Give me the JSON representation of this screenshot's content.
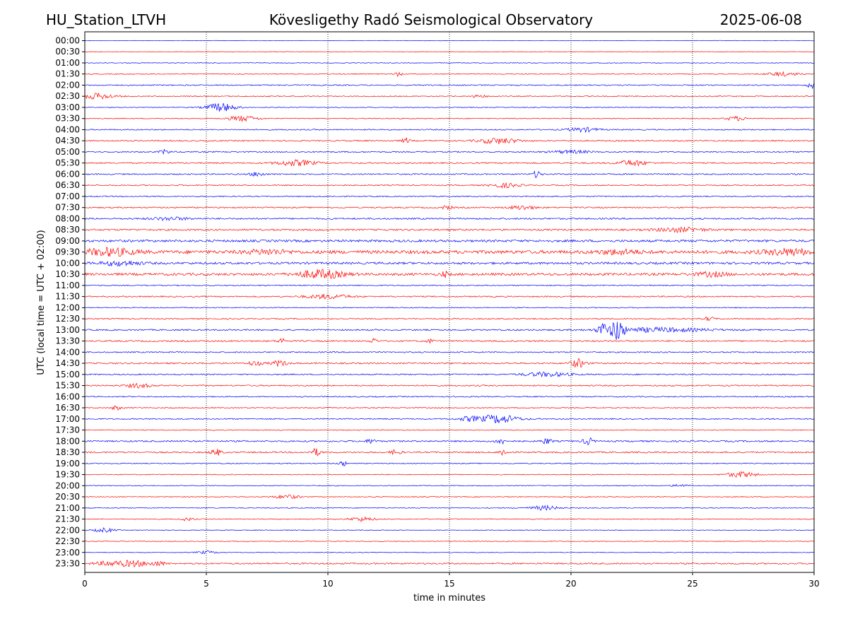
{
  "header": {
    "station": "HU_Station_LTVH",
    "observatory": "Kövesligethy Radó Seismological Observatory",
    "date": "2025-06-08"
  },
  "chart_data": {
    "type": "line",
    "title": "Kövesligethy Radó Seismological Observatory",
    "xlabel": "time in minutes",
    "ylabel": "UTC (local time = UTC + 02:00)",
    "xlim": [
      0,
      30
    ],
    "xticks": [
      "0",
      "5",
      "10",
      "15",
      "20",
      "25",
      "30"
    ],
    "grid": "vertical dotted at each x tick",
    "colors": [
      "#0000ff",
      "#ff0000"
    ],
    "rows": [
      "00:00",
      "00:30",
      "01:00",
      "01:30",
      "02:00",
      "02:30",
      "03:00",
      "03:30",
      "04:00",
      "04:30",
      "05:00",
      "05:30",
      "06:00",
      "06:30",
      "07:00",
      "07:30",
      "08:00",
      "08:30",
      "09:00",
      "09:30",
      "10:00",
      "10:30",
      "11:00",
      "11:30",
      "12:00",
      "12:30",
      "13:00",
      "13:30",
      "14:00",
      "14:30",
      "15:00",
      "15:30",
      "16:00",
      "16:30",
      "17:00",
      "17:30",
      "18:00",
      "18:30",
      "19:00",
      "19:30",
      "20:00",
      "20:30",
      "21:00",
      "21:30",
      "22:00",
      "22:30",
      "23:00",
      "23:30"
    ],
    "noise": [
      0.3,
      0.3,
      0.5,
      0.6,
      0.8,
      0.7,
      0.6,
      0.6,
      0.8,
      0.9,
      0.9,
      0.9,
      0.9,
      0.8,
      0.8,
      0.9,
      1.1,
      1.2,
      1.6,
      2.3,
      1.6,
      1.7,
      0.8,
      0.9,
      0.7,
      0.8,
      1.0,
      1.0,
      0.9,
      1.0,
      0.9,
      0.9,
      0.8,
      0.7,
      0.8,
      0.6,
      1.1,
      1.0,
      0.7,
      0.6,
      0.6,
      0.6,
      0.6,
      0.6,
      0.5,
      0.5,
      0.5,
      1.0
    ],
    "events": [
      {
        "row": "01:30",
        "minute": 28.7,
        "width": 0.6,
        "amplitude": 3
      },
      {
        "row": "01:30",
        "minute": 12.9,
        "width": 0.15,
        "amplitude": 3
      },
      {
        "row": "02:00",
        "minute": 29.9,
        "width": 0.2,
        "amplitude": 4
      },
      {
        "row": "02:30",
        "minute": 0.5,
        "width": 0.7,
        "amplitude": 4
      },
      {
        "row": "02:30",
        "minute": 16.2,
        "width": 0.3,
        "amplitude": 2
      },
      {
        "row": "03:00",
        "minute": 5.6,
        "width": 0.6,
        "amplitude": 6
      },
      {
        "row": "03:30",
        "minute": 6.5,
        "width": 0.6,
        "amplitude": 4
      },
      {
        "row": "03:30",
        "minute": 26.8,
        "width": 0.4,
        "amplitude": 3
      },
      {
        "row": "04:00",
        "minute": 20.5,
        "width": 0.6,
        "amplitude": 3
      },
      {
        "row": "04:30",
        "minute": 17.0,
        "width": 0.8,
        "amplitude": 4
      },
      {
        "row": "04:30",
        "minute": 13.2,
        "width": 0.15,
        "amplitude": 4
      },
      {
        "row": "05:00",
        "minute": 3.3,
        "width": 0.2,
        "amplitude": 3
      },
      {
        "row": "05:00",
        "minute": 20.0,
        "width": 0.8,
        "amplitude": 2
      },
      {
        "row": "05:30",
        "minute": 8.7,
        "width": 0.8,
        "amplitude": 4
      },
      {
        "row": "05:30",
        "minute": 22.5,
        "width": 0.6,
        "amplitude": 4
      },
      {
        "row": "06:00",
        "minute": 18.6,
        "width": 0.15,
        "amplitude": 5
      },
      {
        "row": "06:00",
        "minute": 7.1,
        "width": 0.3,
        "amplitude": 3
      },
      {
        "row": "06:30",
        "minute": 17.3,
        "width": 0.6,
        "amplitude": 3
      },
      {
        "row": "07:30",
        "minute": 14.9,
        "width": 0.2,
        "amplitude": 3
      },
      {
        "row": "07:30",
        "minute": 18.0,
        "width": 0.5,
        "amplitude": 3
      },
      {
        "row": "08:00",
        "minute": 3.5,
        "width": 0.8,
        "amplitude": 2
      },
      {
        "row": "08:30",
        "minute": 24.5,
        "width": 1.0,
        "amplitude": 3
      },
      {
        "row": "09:30",
        "minute": 1.0,
        "width": 1.0,
        "amplitude": 5
      },
      {
        "row": "09:30",
        "minute": 29.0,
        "width": 1.0,
        "amplitude": 4
      },
      {
        "row": "09:30",
        "minute": 7.5,
        "width": 0.8,
        "amplitude": 3
      },
      {
        "row": "09:30",
        "minute": 22.0,
        "width": 0.8,
        "amplitude": 3
      },
      {
        "row": "10:00",
        "minute": 1.5,
        "width": 0.8,
        "amplitude": 3
      },
      {
        "row": "10:30",
        "minute": 9.7,
        "width": 0.9,
        "amplitude": 6
      },
      {
        "row": "10:30",
        "minute": 14.8,
        "width": 0.15,
        "amplitude": 4
      },
      {
        "row": "10:30",
        "minute": 25.8,
        "width": 0.6,
        "amplitude": 3
      },
      {
        "row": "11:30",
        "minute": 10.0,
        "width": 0.9,
        "amplitude": 3
      },
      {
        "row": "12:30",
        "minute": 25.7,
        "width": 0.2,
        "amplitude": 3
      },
      {
        "row": "13:00",
        "minute": 21.9,
        "width": 0.25,
        "amplitude": 16
      },
      {
        "row": "13:00",
        "minute": 21.3,
        "width": 0.2,
        "amplitude": 9
      },
      {
        "row": "13:00",
        "minute": 23.5,
        "width": 2.0,
        "amplitude": 3
      },
      {
        "row": "13:30",
        "minute": 11.9,
        "width": 0.12,
        "amplitude": 5
      },
      {
        "row": "13:30",
        "minute": 8.1,
        "width": 0.15,
        "amplitude": 4
      },
      {
        "row": "13:30",
        "minute": 14.2,
        "width": 0.15,
        "amplitude": 3
      },
      {
        "row": "14:30",
        "minute": 20.3,
        "width": 0.3,
        "amplitude": 6
      },
      {
        "row": "14:30",
        "minute": 8.0,
        "width": 0.3,
        "amplitude": 4
      },
      {
        "row": "14:30",
        "minute": 7.0,
        "width": 0.3,
        "amplitude": 3
      },
      {
        "row": "15:00",
        "minute": 19.0,
        "width": 1.0,
        "amplitude": 3
      },
      {
        "row": "15:30",
        "minute": 2.2,
        "width": 0.5,
        "amplitude": 3
      },
      {
        "row": "16:30",
        "minute": 1.3,
        "width": 0.2,
        "amplitude": 3
      },
      {
        "row": "17:00",
        "minute": 17.0,
        "width": 0.8,
        "amplitude": 6
      },
      {
        "row": "17:00",
        "minute": 15.8,
        "width": 0.4,
        "amplitude": 3
      },
      {
        "row": "18:00",
        "minute": 20.7,
        "width": 0.2,
        "amplitude": 5
      },
      {
        "row": "18:00",
        "minute": 17.1,
        "width": 0.2,
        "amplitude": 4
      },
      {
        "row": "18:00",
        "minute": 19.0,
        "width": 0.2,
        "amplitude": 4
      },
      {
        "row": "18:00",
        "minute": 11.8,
        "width": 0.2,
        "amplitude": 3
      },
      {
        "row": "18:30",
        "minute": 5.4,
        "width": 0.2,
        "amplitude": 5
      },
      {
        "row": "18:30",
        "minute": 9.5,
        "width": 0.2,
        "amplitude": 5
      },
      {
        "row": "18:30",
        "minute": 12.8,
        "width": 0.2,
        "amplitude": 4
      },
      {
        "row": "18:30",
        "minute": 17.2,
        "width": 0.15,
        "amplitude": 5
      },
      {
        "row": "19:00",
        "minute": 10.6,
        "width": 0.15,
        "amplitude": 4
      },
      {
        "row": "19:30",
        "minute": 27.0,
        "width": 0.6,
        "amplitude": 4
      },
      {
        "row": "20:00",
        "minute": 24.5,
        "width": 0.3,
        "amplitude": 2
      },
      {
        "row": "20:30",
        "minute": 8.3,
        "width": 0.5,
        "amplitude": 3
      },
      {
        "row": "21:00",
        "minute": 18.9,
        "width": 0.6,
        "amplitude": 3
      },
      {
        "row": "21:30",
        "minute": 11.4,
        "width": 0.5,
        "amplitude": 3
      },
      {
        "row": "21:30",
        "minute": 4.2,
        "width": 0.3,
        "amplitude": 2
      },
      {
        "row": "22:00",
        "minute": 0.8,
        "width": 0.4,
        "amplitude": 3
      },
      {
        "row": "23:00",
        "minute": 5.0,
        "width": 0.4,
        "amplitude": 2
      },
      {
        "row": "23:30",
        "minute": 2.0,
        "width": 0.6,
        "amplitude": 4
      },
      {
        "row": "23:30",
        "minute": 3.0,
        "width": 0.3,
        "amplitude": 3
      },
      {
        "row": "23:30",
        "minute": 1.0,
        "width": 0.6,
        "amplitude": 3
      }
    ]
  }
}
